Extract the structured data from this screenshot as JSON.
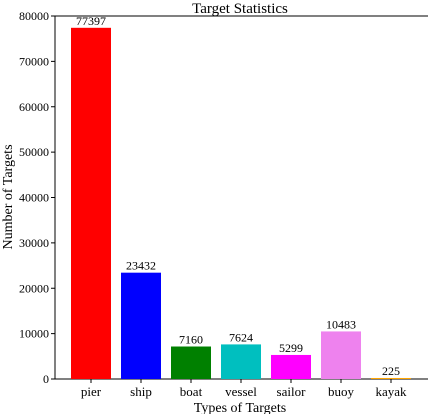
{
  "chart_data": {
    "type": "bar",
    "title": "Target Statistics",
    "xlabel": "Types of Targets",
    "ylabel": "Number of Targets",
    "categories": [
      "pier",
      "ship",
      "boat",
      "vessel",
      "sailor",
      "buoy",
      "kayak"
    ],
    "values": [
      77397,
      23432,
      7160,
      7624,
      5299,
      10483,
      225
    ],
    "colors": [
      "#ff0000",
      "#0000ff",
      "#008000",
      "#00bfbf",
      "#ff00ff",
      "#ee82ee",
      "#ffa500"
    ],
    "ylim": [
      0,
      80000
    ],
    "yticks": [
      0,
      10000,
      20000,
      30000,
      40000,
      50000,
      60000,
      70000,
      80000
    ],
    "grid": false,
    "legend": "none"
  }
}
